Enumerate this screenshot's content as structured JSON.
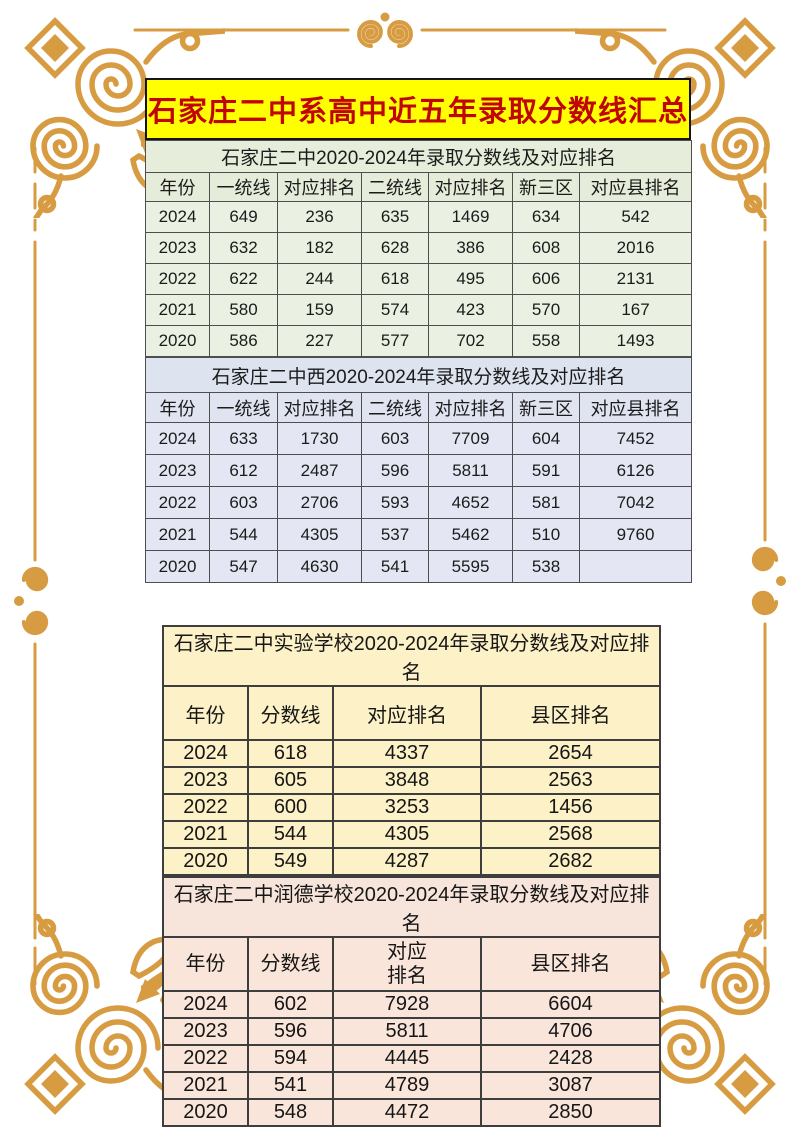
{
  "banner": {
    "title": "石家庄二中系高中近五年录取分数线汇总",
    "bg_color": "#FFFF00",
    "text_color": "#C00505"
  },
  "tables": [
    {
      "title": "石家庄二中2020-2024年录取分数线及对应排名",
      "columns": [
        "年份",
        "一统线",
        "对应排名",
        "二统线",
        "对应排名",
        "新三区",
        "对应县排名"
      ],
      "rows": [
        [
          "2024",
          "649",
          "236",
          "635",
          "1469",
          "634",
          "542"
        ],
        [
          "2023",
          "632",
          "182",
          "628",
          "386",
          "608",
          "2016"
        ],
        [
          "2022",
          "622",
          "244",
          "618",
          "495",
          "606",
          "2131"
        ],
        [
          "2021",
          "580",
          "159",
          "574",
          "423",
          "570",
          "167"
        ],
        [
          "2020",
          "586",
          "227",
          "577",
          "702",
          "558",
          "1493"
        ]
      ],
      "theme_color": "#EAF1E2"
    },
    {
      "title": "石家庄二中西2020-2024年录取分数线及对应排名",
      "columns": [
        "年份",
        "一统线",
        "对应排名",
        "二统线",
        "对应排名",
        "新三区",
        "对应县排名"
      ],
      "rows": [
        [
          "2024",
          "633",
          "1730",
          "603",
          "7709",
          "604",
          "7452"
        ],
        [
          "2023",
          "612",
          "2487",
          "596",
          "5811",
          "591",
          "6126"
        ],
        [
          "2022",
          "603",
          "2706",
          "593",
          "4652",
          "581",
          "7042"
        ],
        [
          "2021",
          "544",
          "4305",
          "537",
          "5462",
          "510",
          "9760"
        ],
        [
          "2020",
          "547",
          "4630",
          "541",
          "5595",
          "538",
          ""
        ]
      ],
      "theme_color": "#E4E7F3"
    },
    {
      "title": "石家庄二中实验学校2020-2024年录取分数线及对应排名",
      "columns": [
        "年份",
        "分数线",
        "对应排名",
        "县区排名"
      ],
      "rows": [
        [
          "2024",
          "618",
          "4337",
          "2654"
        ],
        [
          "2023",
          "605",
          "3848",
          "2563"
        ],
        [
          "2022",
          "600",
          "3253",
          "1456"
        ],
        [
          "2021",
          "544",
          "4305",
          "2568"
        ],
        [
          "2020",
          "549",
          "4287",
          "2682"
        ]
      ],
      "theme_color": "#FCF1C7"
    },
    {
      "title": "石家庄二中润德学校2020-2024年录取分数线及对应排名",
      "columns": [
        "年份",
        "分数线",
        "对应\n排名",
        "县区排名"
      ],
      "rows": [
        [
          "2024",
          "602",
          "7928",
          "6604"
        ],
        [
          "2023",
          "596",
          "5811",
          "4706"
        ],
        [
          "2022",
          "594",
          "4445",
          "2428"
        ],
        [
          "2021",
          "541",
          "4789",
          "3087"
        ],
        [
          "2020",
          "548",
          "4472",
          "2850"
        ]
      ],
      "theme_color": "#FAE5DB"
    }
  ],
  "decorations": {
    "frame_color": "#D79C42",
    "corner_ornament": "gold-flourish-corner",
    "edge_ornament": "gold-double-curl",
    "top_center_ornament": "gold-twin-curl-dot",
    "bottom_center_ornament": "gold-arcs-and-dot"
  }
}
